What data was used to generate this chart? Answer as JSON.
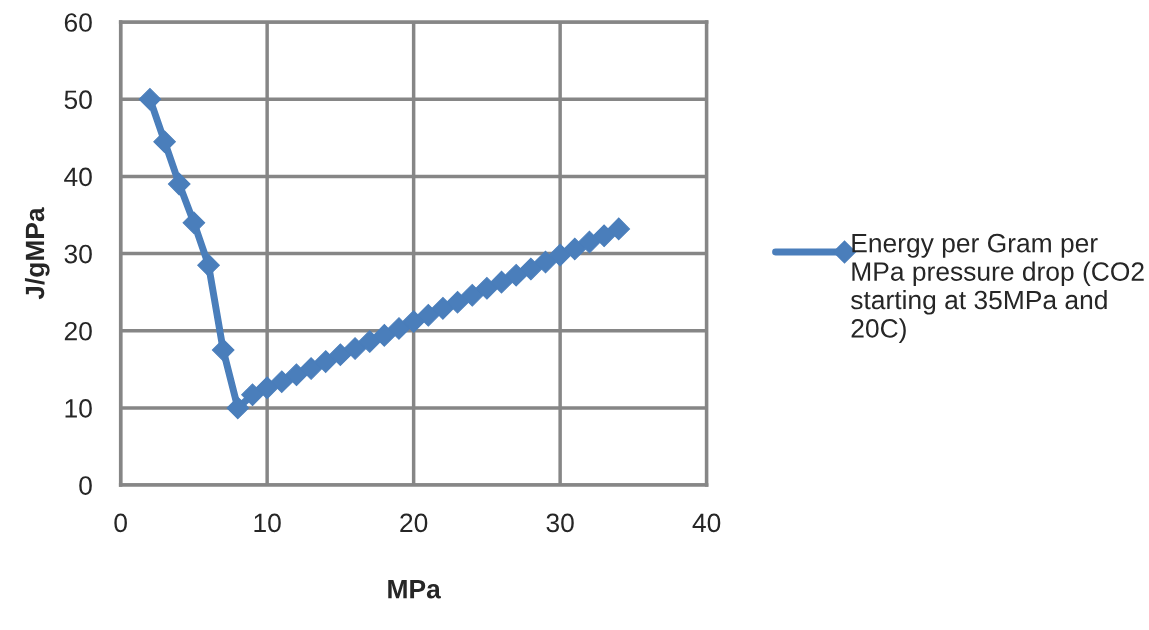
{
  "chart_data": {
    "type": "line",
    "xlabel": "MPa",
    "ylabel": "J/gMPa",
    "x": [
      2,
      3,
      4,
      5,
      6,
      7,
      8,
      9,
      10,
      11,
      12,
      13,
      14,
      15,
      16,
      17,
      18,
      19,
      20,
      21,
      22,
      23,
      24,
      25,
      26,
      27,
      28,
      29,
      30,
      31,
      32,
      33,
      34
    ],
    "series": [
      {
        "name": "Energy per Gram per MPa pressure drop (CO2 starting at 35MPa and 20C)",
        "color": "#4a7ebb",
        "values": [
          50,
          44.5,
          39,
          34,
          28.5,
          17.5,
          10,
          11.7,
          12.6,
          13.4,
          14.3,
          15.1,
          16.0,
          16.9,
          17.7,
          18.6,
          19.4,
          20.3,
          21.2,
          22.0,
          22.9,
          23.7,
          24.6,
          25.5,
          26.3,
          27.2,
          28.0,
          28.9,
          29.8,
          30.6,
          31.5,
          32.3,
          33.2
        ]
      }
    ],
    "xlim": [
      0,
      40
    ],
    "xticks": [
      0,
      10,
      20,
      30,
      40
    ],
    "ylim": [
      0,
      60
    ],
    "yticks": [
      0,
      10,
      20,
      30,
      40,
      50,
      60
    ],
    "grid": true,
    "legend": "right",
    "marker": "diamond",
    "line_style": "solid"
  }
}
